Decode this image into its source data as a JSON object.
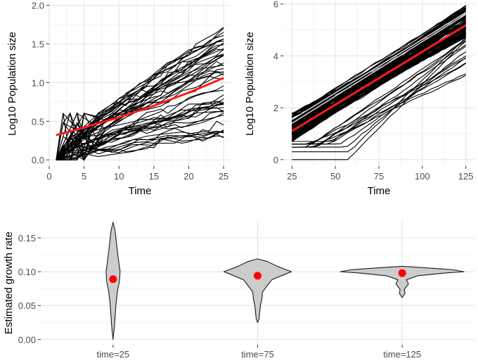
{
  "colors": {
    "panel_bg": "#ffffff",
    "grid_major": "#e6e6e6",
    "grid_minor": "#f3f3f3",
    "trajectory": "#000000",
    "trend": "#ff1a1a",
    "violin_fill": "#cccccc",
    "point": "#ff0000"
  },
  "chart_data": [
    {
      "id": "top-left",
      "type": "line",
      "xlabel": "Time",
      "ylabel": "Log10 Population size",
      "xlim": [
        0,
        26
      ],
      "ylim": [
        -0.08,
        2.05
      ],
      "xticks": [
        0,
        5,
        10,
        15,
        20,
        25
      ],
      "yticks": [
        0.0,
        0.5,
        1.0,
        1.5,
        2.0
      ],
      "ytick_labels": [
        "0.0",
        "0.5",
        "1.0",
        "1.5",
        "2.0"
      ],
      "series": [
        {
          "name": "trajectories",
          "description": "many stochastic population trajectories (black lines) from time 1 to 25",
          "count": 50,
          "start": 0.0,
          "end_range": [
            0.3,
            1.78
          ]
        },
        {
          "name": "trend",
          "color": "red",
          "x": [
            1,
            5,
            10,
            15,
            20,
            25
          ],
          "y": [
            0.32,
            0.42,
            0.55,
            0.7,
            0.87,
            1.06
          ]
        }
      ]
    },
    {
      "id": "top-right",
      "type": "line",
      "xlabel": "Time",
      "ylabel": "Log10 Population size",
      "xlim": [
        20,
        130
      ],
      "ylim": [
        -0.25,
        6.1
      ],
      "xticks": [
        25,
        50,
        75,
        100,
        125
      ],
      "yticks": [
        0,
        2,
        4,
        6
      ],
      "ytick_labels": [
        "0",
        "2",
        "4",
        "6"
      ],
      "series": [
        {
          "name": "trajectories",
          "description": "many population trajectories (black lines) from time 25 to 125",
          "count": 120,
          "end_range": [
            3.2,
            5.95
          ]
        },
        {
          "name": "trend",
          "color": "red",
          "x": [
            25,
            125
          ],
          "y": [
            1.1,
            5.18
          ]
        }
      ]
    },
    {
      "id": "bottom",
      "type": "violin",
      "ylabel": "Estimated growth rate",
      "categories": [
        "time=25",
        "time=75",
        "time=125"
      ],
      "ylim": [
        -0.008,
        0.175
      ],
      "yticks": [
        0.0,
        0.05,
        0.1,
        0.15
      ],
      "ytick_labels": [
        "0.00",
        "0.05",
        "0.10",
        "0.15"
      ],
      "points": [
        0.089,
        0.094,
        0.098
      ],
      "ranges": [
        [
          0.0,
          0.173
        ],
        [
          0.025,
          0.119
        ],
        [
          0.062,
          0.108
        ]
      ]
    }
  ]
}
